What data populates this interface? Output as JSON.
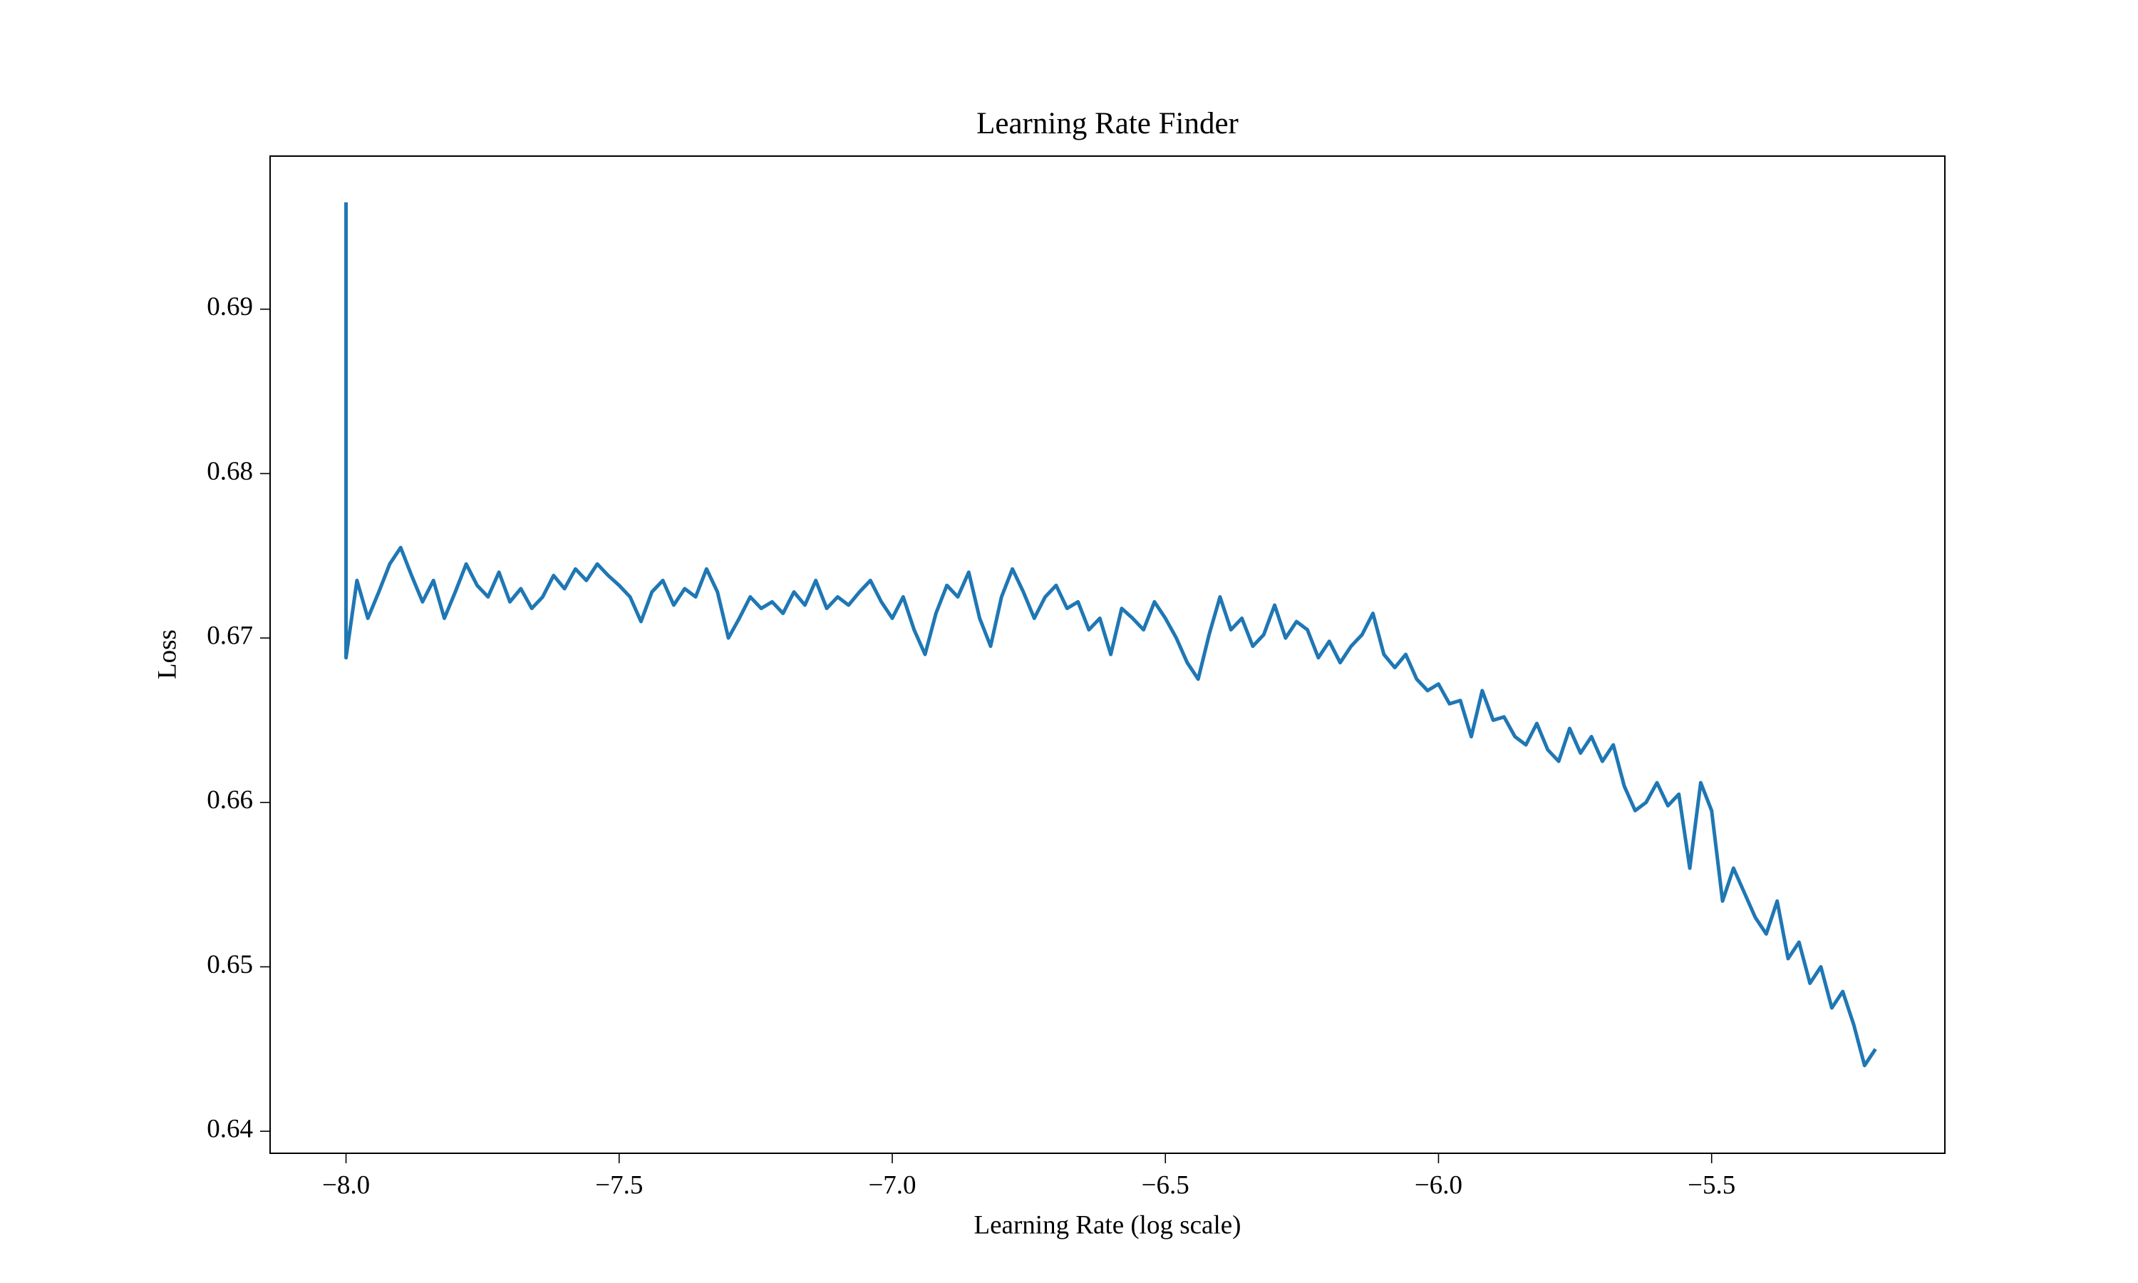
{
  "chart_data": {
    "type": "line",
    "title": "Learning Rate Finder",
    "x_label": "Learning Rate (log scale)",
    "y_label": "Loss",
    "color": "#1f77b4",
    "xlim": [
      -8.139,
      -5.073
    ],
    "ylim": [
      0.63866,
      0.69931
    ],
    "xticks": [
      {
        "value": -8,
        "label": "−8.0"
      },
      {
        "value": -7.5,
        "label": "−7.5"
      },
      {
        "value": -7,
        "label": "−7.0"
      },
      {
        "value": -6.5,
        "label": "−6.5"
      },
      {
        "value": -6,
        "label": "−6.0"
      },
      {
        "value": -5.5,
        "label": "−5.5"
      }
    ],
    "yticks": [
      0.64,
      0.65,
      0.66,
      0.67,
      0.68,
      0.69
    ],
    "x": [
      -8.0,
      -8.0,
      -7.98,
      -7.96,
      -7.94,
      -7.92,
      -7.9,
      -7.88,
      -7.86,
      -7.84,
      -7.82,
      -7.8,
      -7.78,
      -7.76,
      -7.74,
      -7.72,
      -7.7,
      -7.68,
      -7.66,
      -7.64,
      -7.62,
      -7.6,
      -7.58,
      -7.56,
      -7.54,
      -7.52,
      -7.5,
      -7.48,
      -7.46,
      -7.44,
      -7.42,
      -7.4,
      -7.38,
      -7.36,
      -7.34,
      -7.32,
      -7.3,
      -7.28,
      -7.26,
      -7.24,
      -7.22,
      -7.2,
      -7.18,
      -7.16,
      -7.14,
      -7.12,
      -7.1,
      -7.08,
      -7.06,
      -7.04,
      -7.02,
      -7.0,
      -6.98,
      -6.96,
      -6.94,
      -6.92,
      -6.9,
      -6.88,
      -6.86,
      -6.84,
      -6.82,
      -6.8,
      -6.78,
      -6.76,
      -6.74,
      -6.72,
      -6.7,
      -6.68,
      -6.66,
      -6.64,
      -6.62,
      -6.6,
      -6.58,
      -6.56,
      -6.54,
      -6.52,
      -6.5,
      -6.48,
      -6.46,
      -6.44,
      -6.42,
      -6.4,
      -6.38,
      -6.36,
      -6.34,
      -6.32,
      -6.3,
      -6.28,
      -6.26,
      -6.24,
      -6.22,
      -6.2,
      -6.18,
      -6.16,
      -6.14,
      -6.12,
      -6.1,
      -6.08,
      -6.06,
      -6.04,
      -6.02,
      -6.0,
      -5.98,
      -5.96,
      -5.94,
      -5.92,
      -5.9,
      -5.88,
      -5.86,
      -5.84,
      -5.82,
      -5.8,
      -5.78,
      -5.76,
      -5.74,
      -5.72,
      -5.7,
      -5.68,
      -5.66,
      -5.64,
      -5.62,
      -5.6,
      -5.58,
      -5.56,
      -5.54,
      -5.52,
      -5.5,
      -5.48,
      -5.46,
      -5.44,
      -5.42,
      -5.4,
      -5.38,
      -5.36,
      -5.34,
      -5.32,
      -5.3,
      -5.28,
      -5.26,
      -5.24,
      -5.22,
      -5.2
    ],
    "values": [
      0.6965,
      0.6688,
      0.6735,
      0.6712,
      0.6728,
      0.6745,
      0.6755,
      0.6738,
      0.6722,
      0.6735,
      0.6712,
      0.6728,
      0.6745,
      0.6732,
      0.6725,
      0.674,
      0.6722,
      0.673,
      0.6718,
      0.6725,
      0.6738,
      0.673,
      0.6742,
      0.6735,
      0.6745,
      0.6738,
      0.6732,
      0.6725,
      0.671,
      0.6728,
      0.6735,
      0.672,
      0.673,
      0.6725,
      0.6742,
      0.6728,
      0.67,
      0.6712,
      0.6725,
      0.6718,
      0.6722,
      0.6715,
      0.6728,
      0.672,
      0.6735,
      0.6718,
      0.6725,
      0.672,
      0.6728,
      0.6735,
      0.6722,
      0.6712,
      0.6725,
      0.6705,
      0.669,
      0.6715,
      0.6732,
      0.6725,
      0.674,
      0.6712,
      0.6695,
      0.6725,
      0.6742,
      0.6728,
      0.6712,
      0.6725,
      0.6732,
      0.6718,
      0.6722,
      0.6705,
      0.6712,
      0.669,
      0.6718,
      0.6712,
      0.6705,
      0.6722,
      0.6712,
      0.67,
      0.6685,
      0.6675,
      0.6702,
      0.6725,
      0.6705,
      0.6712,
      0.6695,
      0.6702,
      0.672,
      0.67,
      0.671,
      0.6705,
      0.6688,
      0.6698,
      0.6685,
      0.6695,
      0.6702,
      0.6715,
      0.669,
      0.6682,
      0.669,
      0.6675,
      0.6668,
      0.6672,
      0.666,
      0.6662,
      0.664,
      0.6668,
      0.665,
      0.6652,
      0.664,
      0.6635,
      0.6648,
      0.6632,
      0.6625,
      0.6645,
      0.663,
      0.664,
      0.6625,
      0.6635,
      0.661,
      0.6595,
      0.66,
      0.6612,
      0.6598,
      0.6605,
      0.656,
      0.6612,
      0.6595,
      0.654,
      0.656,
      0.6545,
      0.653,
      0.652,
      0.654,
      0.6505,
      0.6515,
      0.649,
      0.65,
      0.6475,
      0.6485,
      0.6465,
      0.644,
      0.645
    ]
  }
}
